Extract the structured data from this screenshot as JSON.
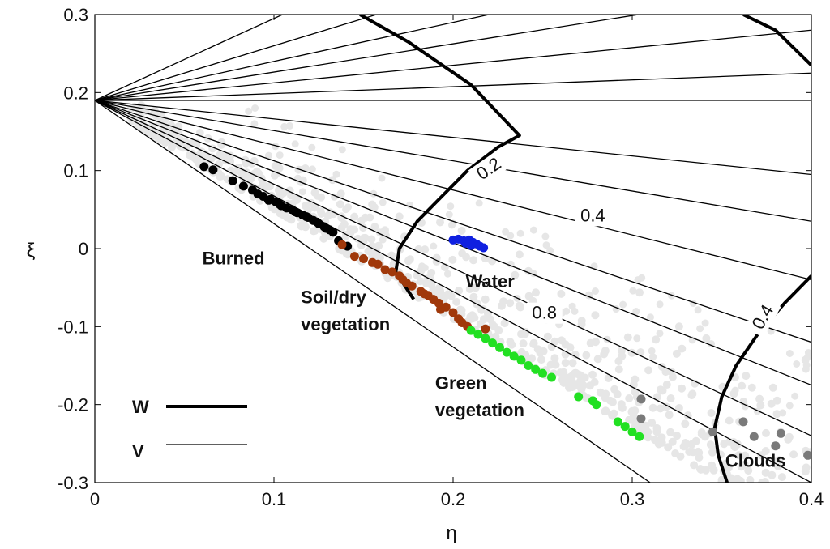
{
  "chart_data": {
    "type": "scatter",
    "xlabel": "η",
    "ylabel": "ξ",
    "xlim": [
      0,
      0.4
    ],
    "ylim": [
      -0.3,
      0.3
    ],
    "xticks": [
      0,
      0.1,
      0.2,
      0.3,
      0.4
    ],
    "xtick_labels": [
      "0",
      "0.1",
      "0.2",
      "0.3",
      "0.4"
    ],
    "yticks": [
      0.3,
      0.2,
      0.1,
      0,
      -0.1,
      -0.2,
      -0.3
    ],
    "ytick_labels": [
      "0.3",
      "0.2",
      "0.1",
      "0",
      "-0.1",
      "-0.2",
      "-0.3"
    ],
    "grid": false,
    "colors": {
      "burned": "#000000",
      "soil": "#a0380a",
      "water": "#1020e0",
      "green": "#22e022",
      "clouds": "#7a7a7a",
      "background_points": "#e6e6e6",
      "lines": "#000000"
    },
    "fan_origin": [
      0.0,
      0.19
    ],
    "v_lines": [
      {
        "end": [
          0.4,
          0.61
        ]
      },
      {
        "end": [
          0.4,
          0.47
        ]
      },
      {
        "end": [
          0.4,
          0.39
        ]
      },
      {
        "end": [
          0.4,
          0.335
        ]
      },
      {
        "end": [
          0.4,
          0.28
        ]
      },
      {
        "end": [
          0.4,
          0.225
        ]
      },
      {
        "end": [
          0.4,
          0.19
        ]
      },
      {
        "end": [
          0.4,
          0.095
        ]
      },
      {
        "end": [
          0.4,
          0.035
        ]
      },
      {
        "end": [
          0.4,
          -0.04
        ]
      },
      {
        "end": [
          0.4,
          -0.12
        ]
      },
      {
        "end": [
          0.4,
          -0.175
        ]
      },
      {
        "end": [
          0.4,
          -0.24
        ]
      },
      {
        "end": [
          0.4,
          -0.3
        ]
      },
      {
        "end": [
          0.31,
          -0.3
        ]
      }
    ],
    "w_contours": [
      {
        "points": [
          [
            0.148,
            0.3
          ],
          [
            0.175,
            0.265
          ],
          [
            0.21,
            0.21
          ],
          [
            0.237,
            0.145
          ],
          [
            0.225,
            0.13
          ],
          [
            0.208,
            0.1
          ],
          [
            0.195,
            0.07
          ],
          [
            0.18,
            0.035
          ],
          [
            0.17,
            0.0
          ],
          [
            0.168,
            -0.03
          ],
          [
            0.178,
            -0.065
          ]
        ]
      },
      {
        "points": [
          [
            0.362,
            0.3
          ],
          [
            0.38,
            0.28
          ],
          [
            0.4,
            0.235
          ]
        ]
      },
      {
        "points": [
          [
            0.4,
            -0.035
          ],
          [
            0.385,
            -0.07
          ],
          [
            0.37,
            -0.11
          ],
          [
            0.358,
            -0.15
          ],
          [
            0.35,
            -0.19
          ],
          [
            0.346,
            -0.23
          ],
          [
            0.348,
            -0.265
          ],
          [
            0.353,
            -0.3
          ]
        ]
      }
    ],
    "annotations": [
      {
        "text": "Burned",
        "x": 0.06,
        "y": -0.02
      },
      {
        "text": "Water",
        "x": 0.207,
        "y": -0.05
      },
      {
        "text": "Soil/dry",
        "x": 0.115,
        "y": -0.07
      },
      {
        "text": "vegetation",
        "x": 0.115,
        "y": -0.105
      },
      {
        "text": "Green",
        "x": 0.19,
        "y": -0.18
      },
      {
        "text": "vegetation",
        "x": 0.19,
        "y": -0.215
      },
      {
        "text": "Clouds",
        "x": 0.352,
        "y": -0.28
      }
    ],
    "contour_labels": [
      {
        "text": "0.2",
        "x": 0.22,
        "y": 0.095,
        "rotate": -35
      },
      {
        "text": "0.4",
        "x": 0.278,
        "y": 0.035,
        "rotate": 0
      },
      {
        "text": "0.8",
        "x": 0.251,
        "y": -0.09,
        "rotate": 0
      },
      {
        "text": "0.4",
        "x": 0.373,
        "y": -0.095,
        "rotate": -60
      }
    ],
    "legend": [
      {
        "label": "W",
        "style": "thick"
      },
      {
        "label": "V",
        "style": "thin"
      }
    ],
    "series": [
      {
        "name": "Burned",
        "color_key": "burned",
        "points": [
          [
            0.061,
            0.105
          ],
          [
            0.066,
            0.101
          ],
          [
            0.077,
            0.087
          ],
          [
            0.083,
            0.08
          ],
          [
            0.088,
            0.075
          ],
          [
            0.091,
            0.07
          ],
          [
            0.094,
            0.067
          ],
          [
            0.098,
            0.063
          ],
          [
            0.101,
            0.06
          ],
          [
            0.104,
            0.055
          ],
          [
            0.107,
            0.052
          ],
          [
            0.11,
            0.05
          ],
          [
            0.113,
            0.046
          ],
          [
            0.116,
            0.043
          ],
          [
            0.119,
            0.04
          ],
          [
            0.122,
            0.036
          ],
          [
            0.125,
            0.032
          ],
          [
            0.128,
            0.028
          ],
          [
            0.131,
            0.024
          ],
          [
            0.133,
            0.021
          ],
          [
            0.136,
            0.01
          ],
          [
            0.141,
            0.003
          ],
          [
            0.097,
            0.062
          ],
          [
            0.103,
            0.057
          ],
          [
            0.112,
            0.047
          ],
          [
            0.118,
            0.041
          ],
          [
            0.124,
            0.034
          ],
          [
            0.129,
            0.026
          ]
        ]
      },
      {
        "name": "Soil/dry vegetation",
        "color_key": "soil",
        "points": [
          [
            0.138,
            0.005
          ],
          [
            0.145,
            -0.01
          ],
          [
            0.15,
            -0.013
          ],
          [
            0.155,
            -0.018
          ],
          [
            0.158,
            -0.02
          ],
          [
            0.162,
            -0.027
          ],
          [
            0.166,
            -0.03
          ],
          [
            0.17,
            -0.035
          ],
          [
            0.172,
            -0.04
          ],
          [
            0.177,
            -0.048
          ],
          [
            0.182,
            -0.055
          ],
          [
            0.186,
            -0.06
          ],
          [
            0.189,
            -0.065
          ],
          [
            0.192,
            -0.07
          ],
          [
            0.196,
            -0.075
          ],
          [
            0.2,
            -0.082
          ],
          [
            0.203,
            -0.09
          ],
          [
            0.205,
            -0.095
          ],
          [
            0.208,
            -0.1
          ],
          [
            0.218,
            -0.103
          ],
          [
            0.193,
            -0.078
          ],
          [
            0.184,
            -0.058
          ],
          [
            0.174,
            -0.044
          ]
        ]
      },
      {
        "name": "Water",
        "color_key": "water",
        "points": [
          [
            0.2,
            0.011
          ],
          [
            0.203,
            0.012
          ],
          [
            0.206,
            0.01
          ],
          [
            0.209,
            0.011
          ],
          [
            0.211,
            0.008
          ],
          [
            0.213,
            0.006
          ],
          [
            0.215,
            0.003
          ],
          [
            0.217,
            0.001
          ],
          [
            0.21,
            0.004
          ],
          [
            0.207,
            0.007
          ]
        ]
      },
      {
        "name": "Green vegetation",
        "color_key": "green",
        "points": [
          [
            0.21,
            -0.105
          ],
          [
            0.214,
            -0.11
          ],
          [
            0.218,
            -0.115
          ],
          [
            0.222,
            -0.121
          ],
          [
            0.226,
            -0.127
          ],
          [
            0.23,
            -0.133
          ],
          [
            0.234,
            -0.138
          ],
          [
            0.238,
            -0.143
          ],
          [
            0.242,
            -0.15
          ],
          [
            0.246,
            -0.155
          ],
          [
            0.25,
            -0.16
          ],
          [
            0.255,
            -0.165
          ],
          [
            0.27,
            -0.19
          ],
          [
            0.278,
            -0.195
          ],
          [
            0.28,
            -0.2
          ],
          [
            0.292,
            -0.222
          ],
          [
            0.296,
            -0.228
          ],
          [
            0.3,
            -0.235
          ],
          [
            0.304,
            -0.241
          ]
        ]
      },
      {
        "name": "Clouds",
        "color_key": "clouds",
        "points": [
          [
            0.305,
            -0.193
          ],
          [
            0.305,
            -0.218
          ],
          [
            0.345,
            -0.235
          ],
          [
            0.362,
            -0.222
          ],
          [
            0.368,
            -0.241
          ],
          [
            0.38,
            -0.253
          ],
          [
            0.383,
            -0.237
          ],
          [
            0.398,
            -0.265
          ]
        ]
      }
    ]
  }
}
